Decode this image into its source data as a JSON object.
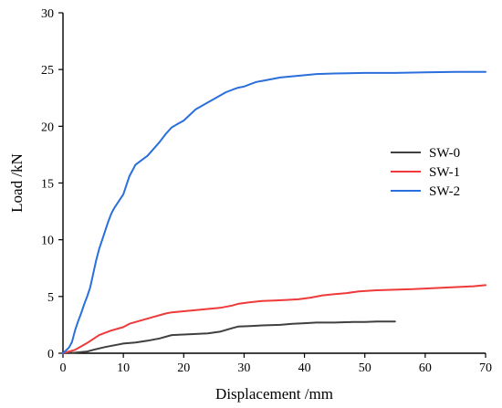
{
  "chart_data": {
    "type": "line",
    "title": "",
    "xlabel": "Displacement /mm",
    "ylabel": "Load /kN",
    "xlim": [
      0,
      70
    ],
    "ylim": [
      0,
      30
    ],
    "xticks": [
      0,
      10,
      20,
      30,
      40,
      50,
      60,
      70
    ],
    "yticks": [
      0,
      5,
      10,
      15,
      20,
      25,
      30
    ],
    "grid": false,
    "legend_position": "right",
    "series": [
      {
        "name": "SW-0",
        "color": "#404040",
        "x": [
          0,
          2,
          4,
          5,
          7,
          9,
          10,
          12,
          14,
          16,
          18,
          20,
          22,
          24,
          26,
          28,
          29,
          31,
          33,
          36,
          38,
          40,
          42,
          45,
          48,
          50,
          52,
          55
        ],
        "y": [
          0,
          0.05,
          0.15,
          0.3,
          0.55,
          0.75,
          0.85,
          0.95,
          1.1,
          1.3,
          1.6,
          1.65,
          1.7,
          1.75,
          1.9,
          2.2,
          2.35,
          2.4,
          2.45,
          2.5,
          2.6,
          2.65,
          2.7,
          2.7,
          2.75,
          2.75,
          2.8,
          2.8
        ]
      },
      {
        "name": "SW-1",
        "color": "#ee3a3a",
        "x": [
          0,
          2,
          4,
          6,
          8,
          10,
          11,
          13,
          15,
          17,
          18,
          20,
          22,
          24,
          26,
          28,
          29,
          31,
          33,
          35,
          37,
          39,
          41,
          43,
          45,
          47,
          49,
          52,
          55,
          58,
          60,
          62,
          64,
          66,
          68,
          70
        ],
        "y": [
          0,
          0.3,
          0.9,
          1.6,
          2.0,
          2.3,
          2.6,
          2.9,
          3.2,
          3.5,
          3.6,
          3.7,
          3.8,
          3.9,
          4.0,
          4.2,
          4.35,
          4.5,
          4.6,
          4.65,
          4.7,
          4.75,
          4.9,
          5.1,
          5.2,
          5.3,
          5.45,
          5.55,
          5.6,
          5.65,
          5.7,
          5.75,
          5.8,
          5.85,
          5.9,
          6.0
        ]
      },
      {
        "name": "SW-2",
        "color": "#2a6fdb",
        "x": [
          0,
          1,
          1.5,
          2,
          2.5,
          3,
          3.5,
          4,
          4.5,
          5,
          5.5,
          6,
          6.5,
          7,
          7.5,
          8,
          8.5,
          9,
          10,
          11,
          12,
          13,
          14,
          15,
          16,
          17,
          18,
          19,
          20,
          21,
          22,
          23,
          24,
          25,
          26,
          27,
          28,
          29,
          30,
          31,
          32,
          33,
          34,
          35,
          36,
          38,
          40,
          42,
          45,
          50,
          55,
          60,
          65,
          70
        ],
        "y": [
          0,
          0.5,
          1.0,
          2.0,
          2.8,
          3.5,
          4.3,
          5.0,
          5.8,
          7.0,
          8.2,
          9.2,
          10.0,
          10.8,
          11.6,
          12.3,
          12.8,
          13.2,
          14.0,
          15.6,
          16.6,
          17.0,
          17.4,
          18.0,
          18.6,
          19.3,
          19.9,
          20.2,
          20.5,
          21.0,
          21.5,
          21.8,
          22.1,
          22.4,
          22.7,
          23.0,
          23.2,
          23.4,
          23.5,
          23.7,
          23.9,
          24.0,
          24.1,
          24.2,
          24.3,
          24.4,
          24.5,
          24.6,
          24.65,
          24.7,
          24.7,
          24.75,
          24.8,
          24.8
        ]
      }
    ]
  }
}
